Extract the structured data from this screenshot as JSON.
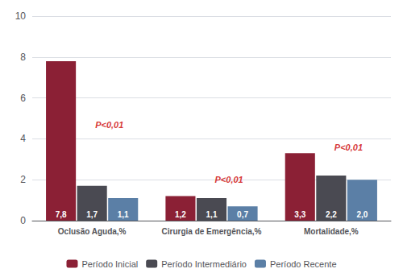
{
  "chart_data": {
    "type": "bar",
    "categories": [
      "Oclusão Aguda,%",
      "Cirurgia de Emergência,%",
      "Mortalidade,%"
    ],
    "series": [
      {
        "name": "Período Inicial",
        "color": "#8B2035",
        "values": [
          7.8,
          1.2,
          3.3
        ],
        "value_labels": [
          "7,8",
          "1,2",
          "3,3"
        ]
      },
      {
        "name": "Período Intermediário",
        "color": "#4A4A52",
        "values": [
          1.7,
          1.1,
          2.2
        ],
        "value_labels": [
          "1,7",
          "1,1",
          "2,2"
        ]
      },
      {
        "name": "Período Recente",
        "color": "#5B7FA6",
        "values": [
          1.1,
          0.7,
          2.0
        ],
        "value_labels": [
          "1,1",
          "0,7",
          "2,0"
        ]
      }
    ],
    "annotations": [
      {
        "text": "P<0,01",
        "category": "Oclusão Aguda,%",
        "y": 4.7,
        "color": "#CC0000"
      },
      {
        "text": "P<0,01",
        "category": "Cirurgia de Emergência,%",
        "y": 2.0,
        "color": "#CC0000"
      },
      {
        "text": "P<0,01",
        "category": "Mortalidade,%",
        "y": 3.6,
        "color": "#CC0000"
      }
    ],
    "ylim": [
      0,
      10
    ],
    "yticks": [
      0,
      2,
      4,
      6,
      8,
      10
    ],
    "grid": true,
    "legend": "bottom",
    "data_labels": true
  }
}
